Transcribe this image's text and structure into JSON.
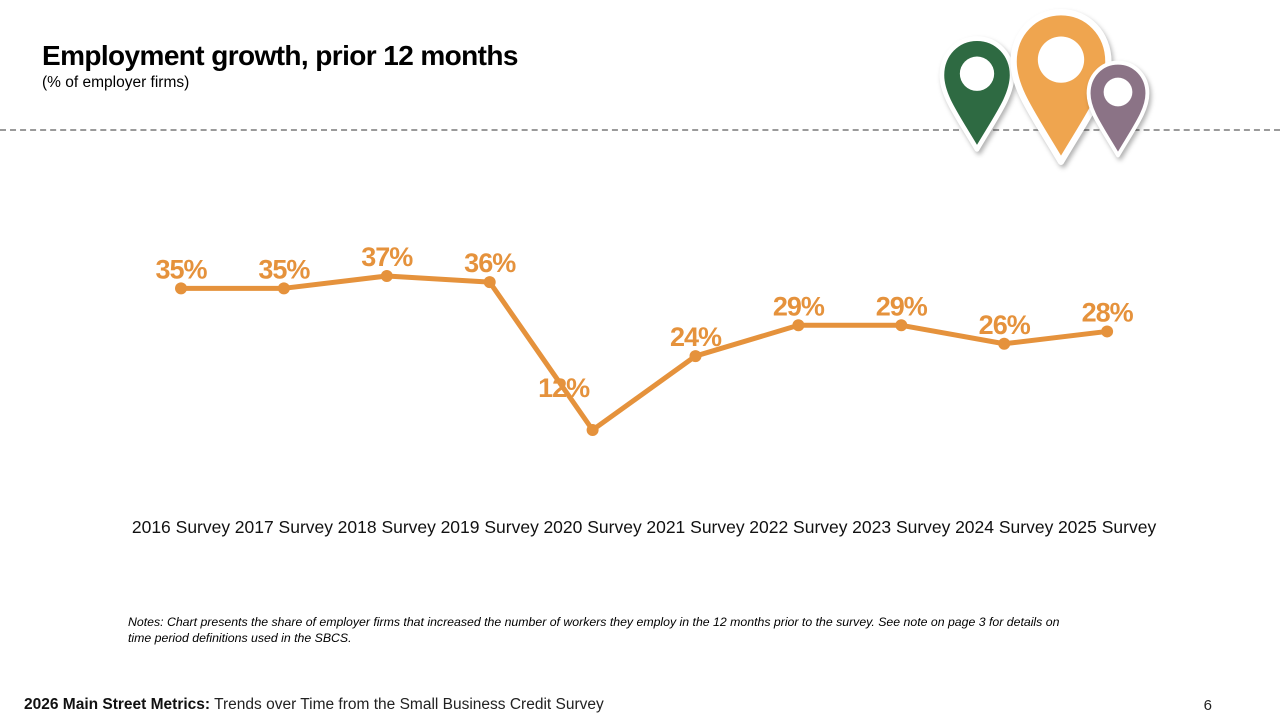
{
  "slide": {
    "title": "Employment growth, prior 12 months",
    "subtitle": "(% of employer firms)",
    "notes_lines": [
      "Notes: Chart presents the share of employer firms that increased the number of workers they employ in the 12 months prior to the survey. See note on page 3 for details on",
      "time period definitions used in the SBCS."
    ],
    "footer": {
      "label_bold": "2026 Main Street Metrics:",
      "label_rest": " Trends over Time from the Small Business Credit Survey",
      "page_number": "6"
    }
  },
  "icons": {
    "pins": [
      {
        "name": "map-pin-green",
        "color": "#2E6A42"
      },
      {
        "name": "map-pin-orange",
        "color": "#EFA54F"
      },
      {
        "name": "map-pin-purple",
        "color": "#8B7386"
      }
    ]
  },
  "chart_data": {
    "type": "line",
    "title": "Employment growth, prior 12 months",
    "subtitle": "(% of employer firms)",
    "categories": [
      "2016 Survey",
      "2017 Survey",
      "2018 Survey",
      "2019 Survey",
      "2020 Survey",
      "2021 Survey",
      "2022 Survey",
      "2023 Survey",
      "2024 Survey",
      "2025 Survey"
    ],
    "series": [
      {
        "name": "Share of employer firms that increased employment in prior 12 months",
        "values": [
          35,
          35,
          37,
          36,
          12,
          24,
          29,
          29,
          26,
          28
        ]
      }
    ],
    "label_format": "{v}%",
    "line_color": "#E5923C",
    "ylim": [
      0,
      45
    ],
    "grid": false,
    "legend": "none"
  }
}
